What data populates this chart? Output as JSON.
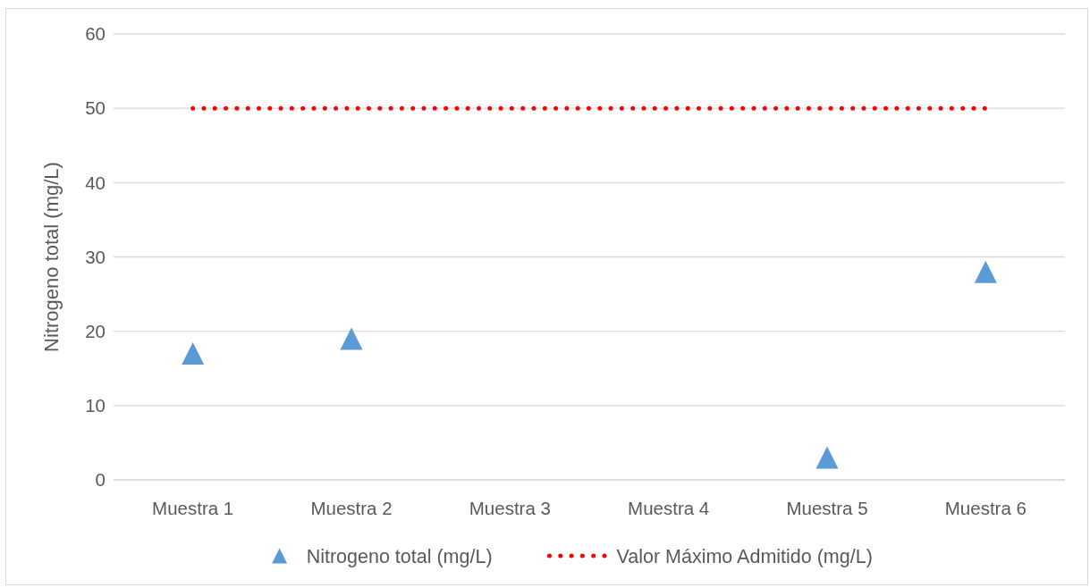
{
  "chart_data": {
    "type": "scatter",
    "ylabel": "Nitrogeno total (mg/L)",
    "categories": [
      "Muestra 1",
      "Muestra 2",
      "Muestra 3",
      "Muestra 4",
      "Muestra 5",
      "Muestra 6"
    ],
    "series": [
      {
        "name": "Nitrogeno total (mg/L)",
        "color": "#5b9bd5",
        "marker": "triangle",
        "values": [
          17,
          19,
          null,
          null,
          3,
          28
        ]
      },
      {
        "name": "Valor Máximo Admitido (mg/L)",
        "type": "line",
        "color": "#ff0000",
        "line_style": "dotted",
        "marker": "none",
        "values": [
          50,
          50,
          50,
          50,
          50,
          50
        ]
      }
    ],
    "ylim": [
      0,
      60
    ],
    "yticks": [
      0,
      10,
      20,
      30,
      40,
      50,
      60
    ],
    "grid": "y",
    "legend": "bottom"
  }
}
